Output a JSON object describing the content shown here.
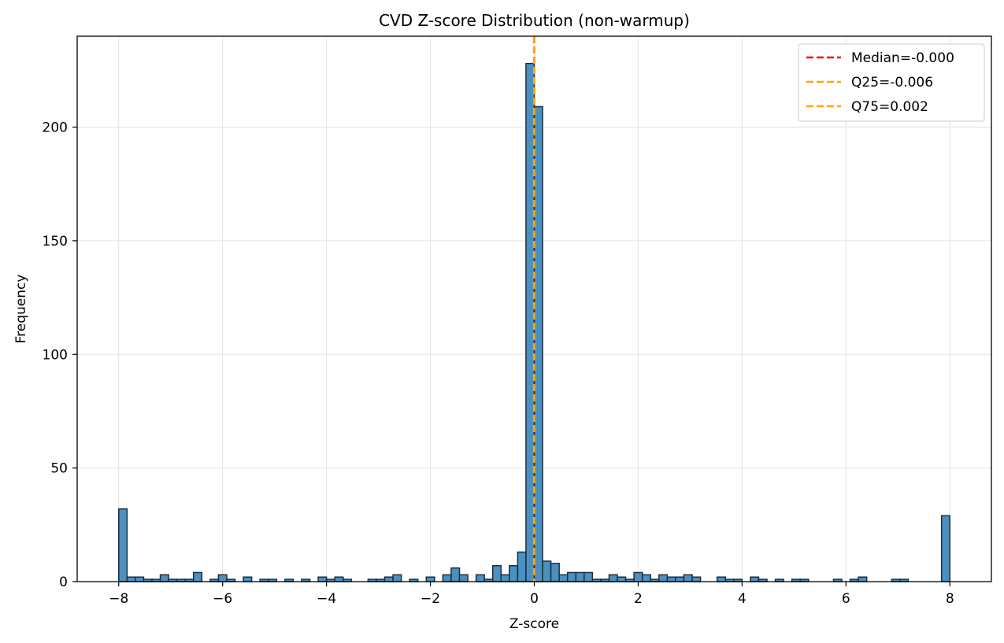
{
  "chart_data": {
    "type": "histogram",
    "title": "CVD Z-score Distribution (non-warmup)",
    "xlabel": "Z-score",
    "ylabel": "Frequency",
    "xlim": [
      -8.8,
      8.8
    ],
    "ylim": [
      0,
      240
    ],
    "xticks": [
      -8,
      -6,
      -4,
      -2,
      0,
      2,
      4,
      6,
      8
    ],
    "xtick_labels": [
      "−8",
      "−6",
      "−4",
      "−2",
      "0",
      "2",
      "4",
      "6",
      "8"
    ],
    "yticks": [
      0,
      50,
      100,
      150,
      200
    ],
    "ytick_labels": [
      "0",
      "50",
      "100",
      "150",
      "200"
    ],
    "grid": true,
    "legend_position": "top-right",
    "bin_range": [
      -8,
      8
    ],
    "bin_count": 100,
    "counts": [
      32,
      2,
      2,
      1,
      1,
      3,
      1,
      1,
      1,
      4,
      0,
      1,
      3,
      1,
      0,
      2,
      0,
      1,
      1,
      0,
      1,
      0,
      1,
      0,
      2,
      1,
      2,
      1,
      0,
      0,
      1,
      1,
      2,
      3,
      0,
      1,
      0,
      2,
      0,
      3,
      6,
      3,
      0,
      3,
      1,
      7,
      3,
      7,
      13,
      228,
      209,
      9,
      8,
      3,
      4,
      4,
      4,
      1,
      1,
      3,
      2,
      1,
      4,
      3,
      1,
      3,
      2,
      2,
      3,
      2,
      0,
      0,
      2,
      1,
      1,
      0,
      2,
      1,
      0,
      1,
      0,
      1,
      1,
      0,
      0,
      0,
      1,
      0,
      1,
      2,
      0,
      0,
      0,
      1,
      1,
      0,
      0,
      0,
      0,
      29
    ],
    "bar_color": "#4c90c0",
    "bar_edge_color": "#1a2e40",
    "lines": [
      {
        "label": "Median=-0.000",
        "x": -0.0,
        "color": "#ff0000"
      },
      {
        "label": "Q25=-0.006",
        "x": -0.006,
        "color": "#ffa500"
      },
      {
        "label": "Q75=0.002",
        "x": 0.002,
        "color": "#ffa500"
      }
    ]
  }
}
